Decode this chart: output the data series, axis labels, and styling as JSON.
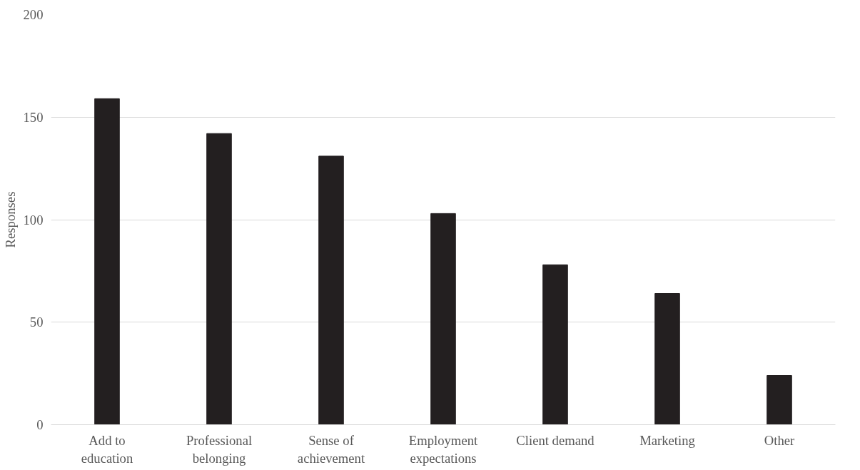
{
  "chart_data": {
    "type": "bar",
    "ylabel": "Responses",
    "categories": [
      "Add to education",
      "Professional belonging",
      "Sense of achievement",
      "Employment expectations",
      "Client demand",
      "Marketing",
      "Other"
    ],
    "values": [
      159,
      142,
      131,
      103,
      78,
      64,
      24
    ],
    "color": "#231f20",
    "ylim": [
      0,
      200
    ],
    "yticks": [
      0,
      50,
      100,
      150,
      200
    ],
    "grid": "y"
  }
}
